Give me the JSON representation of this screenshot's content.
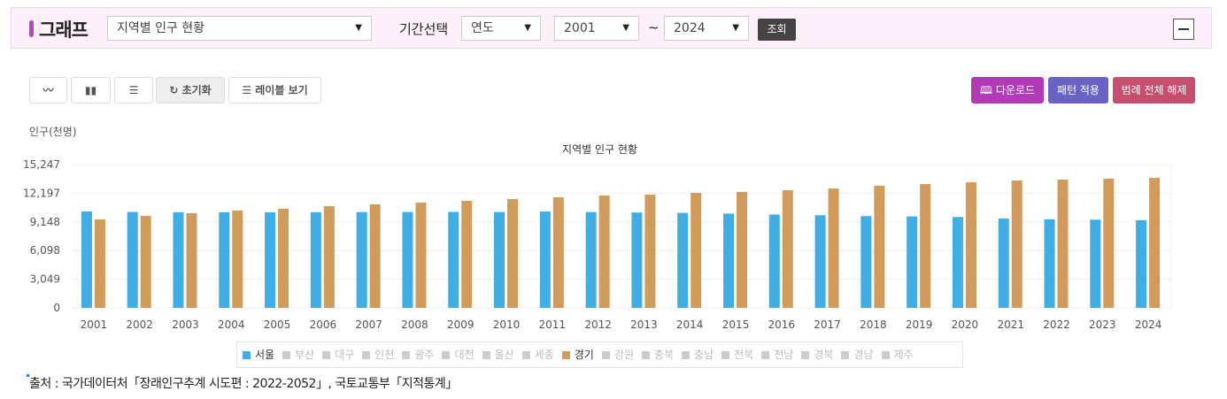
{
  "header": {
    "title": "그래프",
    "graph_select": "지역별 인구 현황",
    "period_label": "기간선택",
    "period_unit": "연도",
    "from_year": "2001",
    "tilde": "~",
    "to_year": "2024",
    "query_button": "조회"
  },
  "toolbar": {
    "reset": "초기화",
    "label_view": "레이블 보기",
    "download": "다운로드",
    "pattern": "패턴 적용",
    "legend_clear": "범례 전체 해제"
  },
  "colors": {
    "seoul": "#41ade2",
    "gyeonggi": "#d09b5b",
    "download": "#b03ab8",
    "pattern": "#6b63c4",
    "legend_clear": "#c44f6f"
  },
  "chart_data": {
    "type": "bar",
    "title": "지역별 인구 현황",
    "ylabel": "인구(천명)",
    "xlabel": "",
    "yticks": [
      "0",
      "3,049",
      "6,098",
      "9,148",
      "12,197",
      "15,247"
    ],
    "ylim": [
      0,
      15247
    ],
    "grid": true,
    "legend": "bottom",
    "categories": [
      "2001",
      "2002",
      "2003",
      "2004",
      "2005",
      "2006",
      "2007",
      "2008",
      "2009",
      "2010",
      "2011",
      "2012",
      "2013",
      "2014",
      "2015",
      "2016",
      "2017",
      "2018",
      "2019",
      "2020",
      "2021",
      "2022",
      "2023",
      "2024"
    ],
    "series": [
      {
        "name": "서울",
        "color": "#41ade2",
        "values": [
          10263,
          10207,
          10174,
          10173,
          10167,
          10181,
          10193,
          10201,
          10208,
          10200,
          10250,
          10195,
          10144,
          10103,
          10022,
          9930,
          9857,
          9766,
          9729,
          9668,
          9509,
          9428,
          9386,
          9331
        ]
      },
      {
        "name": "경기",
        "color": "#d09b5b",
        "values": [
          9410,
          9790,
          10070,
          10350,
          10540,
          10820,
          11010,
          11200,
          11390,
          11570,
          11760,
          11950,
          12040,
          12230,
          12330,
          12515,
          12700,
          12990,
          13170,
          13360,
          13550,
          13640,
          13740,
          13830
        ]
      }
    ],
    "legend_items": [
      {
        "name": "서울",
        "active": true
      },
      {
        "name": "부산",
        "active": false
      },
      {
        "name": "대구",
        "active": false
      },
      {
        "name": "인천",
        "active": false
      },
      {
        "name": "광주",
        "active": false
      },
      {
        "name": "대전",
        "active": false
      },
      {
        "name": "울산",
        "active": false
      },
      {
        "name": "세종",
        "active": false
      },
      {
        "name": "경기",
        "active": true
      },
      {
        "name": "강원",
        "active": false
      },
      {
        "name": "충북",
        "active": false
      },
      {
        "name": "충남",
        "active": false
      },
      {
        "name": "전북",
        "active": false
      },
      {
        "name": "전남",
        "active": false
      },
      {
        "name": "경북",
        "active": false
      },
      {
        "name": "경남",
        "active": false
      },
      {
        "name": "제주",
        "active": false
      }
    ]
  },
  "source": "출처 : 국가데이터처「장래인구추계 시도편 : 2022-2052」, 국토교통부「지적통계」"
}
